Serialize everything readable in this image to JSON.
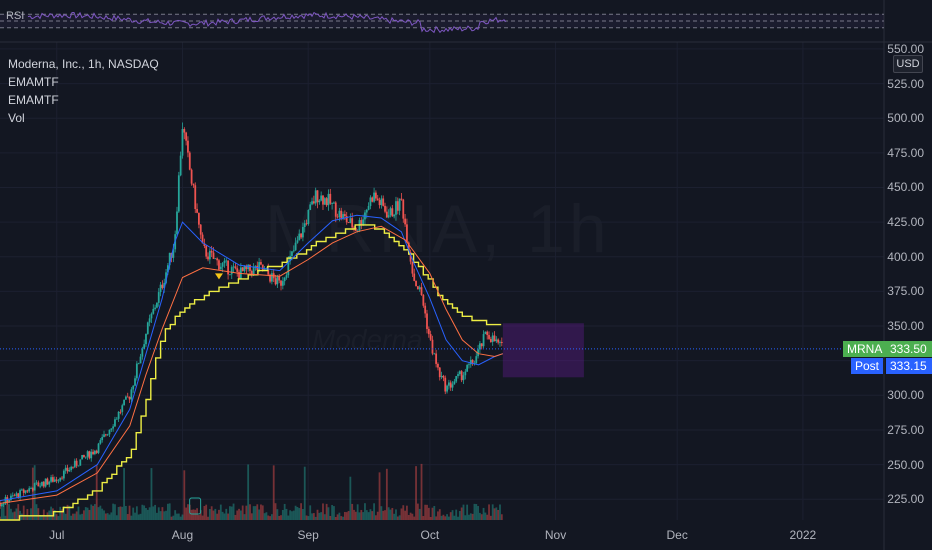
{
  "legend": {
    "title": "Moderna, Inc., 1h, NASDAQ",
    "indicators": [
      "EMAMTF",
      "EMAMTF",
      "Vol"
    ]
  },
  "rsi_label": "RSI",
  "currency": "USD",
  "watermark": {
    "symbol": "MRNA, 1h",
    "name": "Moderna"
  },
  "tags": {
    "symbol": "MRNA",
    "symbol_price": "333.50",
    "post": "Post",
    "post_price": "333.15"
  },
  "colors": {
    "background": "#131722",
    "up": "#26a69a",
    "down": "#ef5350",
    "ema_slow": "#eeee44",
    "ema_fast_blue": "#2962ff",
    "ema_fast_orange": "#ff7043",
    "rsi": "#7e57c2",
    "zone": "#6a1b9a",
    "symbol_tag": "#4caf50",
    "post_tag": "#2962ff"
  },
  "chart_data": {
    "type": "line",
    "title": "Moderna, Inc., 1h, NASDAQ",
    "y_axis": {
      "ticks": [
        225,
        250,
        275,
        300,
        325,
        350,
        375,
        400,
        425,
        450,
        475,
        500,
        525,
        550
      ],
      "tick_labels": [
        "225.00",
        "250.00",
        "275.00",
        "300.00",
        "325.00",
        "350.00",
        "375.00",
        "400.00",
        "425.00",
        "450.00",
        "475.00",
        "500.00",
        "525.00",
        "550.00"
      ],
      "ylim": [
        210,
        555
      ]
    },
    "x_axis": {
      "labels": [
        "Jul",
        "Aug",
        "Sep",
        "Oct",
        "Nov",
        "Dec",
        "2022"
      ],
      "label_days": [
        0,
        31,
        62,
        92,
        123,
        153,
        184
      ],
      "xlim": [
        -14,
        204
      ]
    },
    "price_path": {
      "days": [
        -14,
        -5,
        0,
        10,
        18,
        22,
        26,
        29,
        31,
        36,
        40,
        45,
        50,
        55,
        60,
        64,
        67,
        70,
        74,
        78,
        82,
        85,
        88,
        90,
        92,
        94,
        96,
        98,
        100,
        103,
        106,
        110
      ],
      "prices": [
        222,
        235,
        240,
        262,
        300,
        345,
        380,
        410,
        495,
        405,
        395,
        388,
        392,
        380,
        415,
        445,
        440,
        430,
        420,
        445,
        430,
        440,
        385,
        372,
        340,
        318,
        305,
        310,
        315,
        325,
        345,
        333.5
      ]
    },
    "series": [
      {
        "name": "EMAMTF",
        "color": "#eeee44",
        "days": [
          -14,
          0,
          10,
          18,
          22,
          26,
          31,
          36,
          45,
          50,
          55,
          60,
          64,
          70,
          75,
          80,
          86,
          90,
          94,
          98,
          102,
          106,
          110
        ],
        "values": [
          210,
          215,
          232,
          258,
          298,
          345,
          362,
          372,
          383,
          390,
          395,
          402,
          410,
          418,
          423,
          420,
          405,
          390,
          372,
          362,
          355,
          352,
          350
        ]
      },
      {
        "name": "EMAMTF",
        "color": "#2962ff",
        "days": [
          -14,
          0,
          10,
          18,
          22,
          26,
          29,
          31,
          36,
          45,
          55,
          62,
          68,
          74,
          80,
          85,
          88,
          92,
          96,
          100,
          104,
          108,
          110
        ],
        "values": [
          224,
          231,
          250,
          290,
          330,
          370,
          410,
          425,
          410,
          394,
          390,
          410,
          426,
          430,
          428,
          418,
          396,
          370,
          340,
          325,
          322,
          328,
          330
        ]
      },
      {
        "name": "EMAMTF",
        "color": "#ff7043",
        "days": [
          -14,
          0,
          10,
          18,
          22,
          26,
          31,
          36,
          45,
          55,
          62,
          68,
          74,
          80,
          86,
          92,
          96,
          100,
          104,
          108,
          110
        ],
        "values": [
          222,
          228,
          244,
          278,
          315,
          348,
          385,
          392,
          388,
          386,
          398,
          410,
          418,
          422,
          412,
          388,
          362,
          340,
          330,
          328,
          330
        ]
      }
    ],
    "last_price": 333.5,
    "post_price": 333.15,
    "zone": {
      "day_start": 110,
      "day_end": 130,
      "price_low": 313,
      "price_high": 352
    },
    "rsi_levels": [
      70,
      50,
      30
    ],
    "volume": "Vol",
    "grid": true,
    "legend_position": "top-left"
  }
}
